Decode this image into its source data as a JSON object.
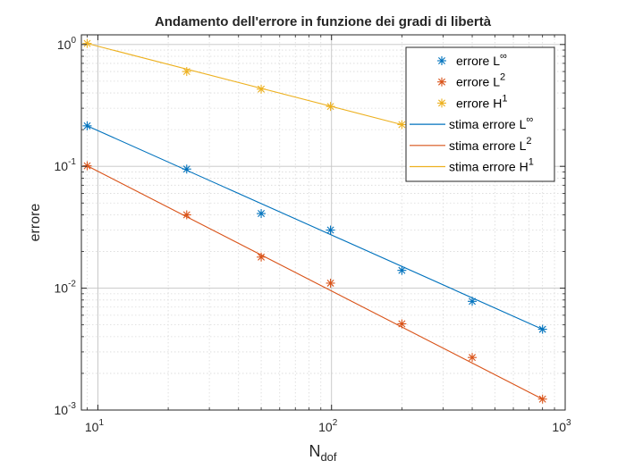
{
  "chart_data": {
    "type": "line",
    "title": "Andamento dell'errore in funzione dei gradi di libertà",
    "xlabel": {
      "main": "N",
      "sub": "dof"
    },
    "ylabel": "errore",
    "xscale": "log",
    "yscale": "log",
    "xlim": [
      8.5,
      1000
    ],
    "ylim": [
      0.001,
      1.2
    ],
    "grid": true,
    "minor_grid": true,
    "legend_position": "top-right",
    "x_ticks": [
      {
        "value": 10,
        "base": "10",
        "exp": "1"
      },
      {
        "value": 100,
        "base": "10",
        "exp": "2"
      },
      {
        "value": 1000,
        "base": "10",
        "exp": "3"
      }
    ],
    "y_ticks": [
      {
        "value": 0.001,
        "base": "10",
        "exp": "-3"
      },
      {
        "value": 0.01,
        "base": "10",
        "exp": "-2"
      },
      {
        "value": 0.1,
        "base": "10",
        "exp": "-1"
      },
      {
        "value": 1,
        "base": "10",
        "exp": "0"
      }
    ],
    "series": [
      {
        "legend_base": "errore L",
        "legend_sup": "∞",
        "kind": "marker",
        "color": "#0072BD",
        "x": [
          9,
          24,
          50,
          99,
          200,
          400,
          800
        ],
        "y": [
          0.215,
          0.095,
          0.041,
          0.03,
          0.014,
          0.0078,
          0.0046
        ]
      },
      {
        "legend_base": "errore L",
        "legend_sup": "2",
        "kind": "marker",
        "color": "#D95319",
        "x": [
          9,
          24,
          50,
          99,
          200,
          400,
          800
        ],
        "y": [
          0.101,
          0.04,
          0.018,
          0.011,
          0.0051,
          0.0027,
          0.00123
        ]
      },
      {
        "legend_base": "errore H",
        "legend_sup": "1",
        "kind": "marker",
        "color": "#EDB120",
        "x": [
          9,
          24,
          50,
          99,
          200
        ],
        "y": [
          1.02,
          0.6,
          0.43,
          0.31,
          0.22
        ]
      },
      {
        "legend_base": "stima errore L",
        "legend_sup": "∞",
        "kind": "line",
        "color": "#0072BD",
        "x": [
          9,
          800
        ],
        "y": [
          0.215,
          0.0046
        ]
      },
      {
        "legend_base": "stima errore L",
        "legend_sup": "2",
        "kind": "line",
        "color": "#D95319",
        "x": [
          9,
          800
        ],
        "y": [
          0.101,
          0.00123
        ]
      },
      {
        "legend_base": "stima errore H",
        "legend_sup": "1",
        "kind": "line",
        "color": "#EDB120",
        "x": [
          9,
          200
        ],
        "y": [
          1.02,
          0.22
        ]
      }
    ]
  }
}
